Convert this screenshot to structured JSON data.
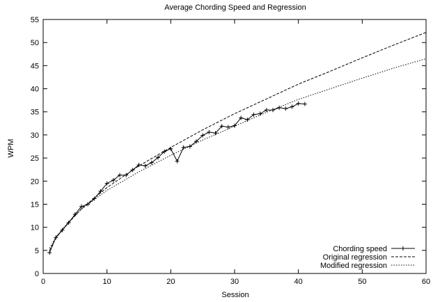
{
  "chart_data": {
    "type": "line",
    "title": "Average Chording Speed and Regression",
    "xlabel": "Session",
    "ylabel": "WPM",
    "xlim": [
      0,
      60
    ],
    "ylim": [
      0,
      55
    ],
    "xticks": [
      0,
      10,
      20,
      30,
      40,
      50,
      60
    ],
    "yticks": [
      0,
      5,
      10,
      15,
      20,
      25,
      30,
      35,
      40,
      45,
      50,
      55
    ],
    "grid": false,
    "legend_position": "bottom-right",
    "series": [
      {
        "name": "Chording speed",
        "style": "solid-with-plus-markers",
        "color": "#000000",
        "x": [
          1,
          2,
          3,
          4,
          5,
          6,
          7,
          8,
          9,
          10,
          11,
          12,
          13,
          14,
          15,
          16,
          17,
          18,
          19,
          20,
          21,
          22,
          23,
          24,
          25,
          26,
          27,
          28,
          29,
          30,
          31,
          32,
          33,
          34,
          35,
          36,
          37,
          38,
          39,
          40,
          41
        ],
        "y": [
          4.5,
          7.8,
          9.4,
          11.0,
          12.8,
          14.5,
          15.0,
          16.2,
          17.8,
          19.5,
          20.2,
          21.3,
          21.3,
          22.4,
          23.5,
          23.3,
          24.0,
          25.1,
          26.4,
          27.0,
          24.3,
          27.3,
          27.5,
          28.6,
          29.9,
          30.6,
          30.4,
          31.9,
          31.7,
          32.0,
          33.7,
          33.3,
          34.4,
          34.6,
          35.4,
          35.4,
          35.9,
          35.7,
          36.1,
          36.8,
          36.7
        ]
      },
      {
        "name": "Original regression",
        "style": "dashed",
        "color": "#000000",
        "x": [
          1,
          2,
          4,
          6,
          8,
          10,
          15,
          20,
          25,
          30,
          35,
          40,
          45,
          50,
          55,
          60
        ],
        "y": [
          5.0,
          7.7,
          11.0,
          14.0,
          16.3,
          18.6,
          23.3,
          27.3,
          31.1,
          34.6,
          37.8,
          41.0,
          43.8,
          46.7,
          49.5,
          52.2
        ]
      },
      {
        "name": "Modified regression",
        "style": "dotted",
        "color": "#000000",
        "x": [
          1,
          2,
          4,
          6,
          8,
          10,
          15,
          20,
          25,
          30,
          35,
          40,
          45,
          50,
          55,
          60
        ],
        "y": [
          5.5,
          7.9,
          11.2,
          13.9,
          16.0,
          18.0,
          22.0,
          25.6,
          28.9,
          31.9,
          34.9,
          37.7,
          40.0,
          42.3,
          44.5,
          46.5
        ]
      }
    ]
  }
}
